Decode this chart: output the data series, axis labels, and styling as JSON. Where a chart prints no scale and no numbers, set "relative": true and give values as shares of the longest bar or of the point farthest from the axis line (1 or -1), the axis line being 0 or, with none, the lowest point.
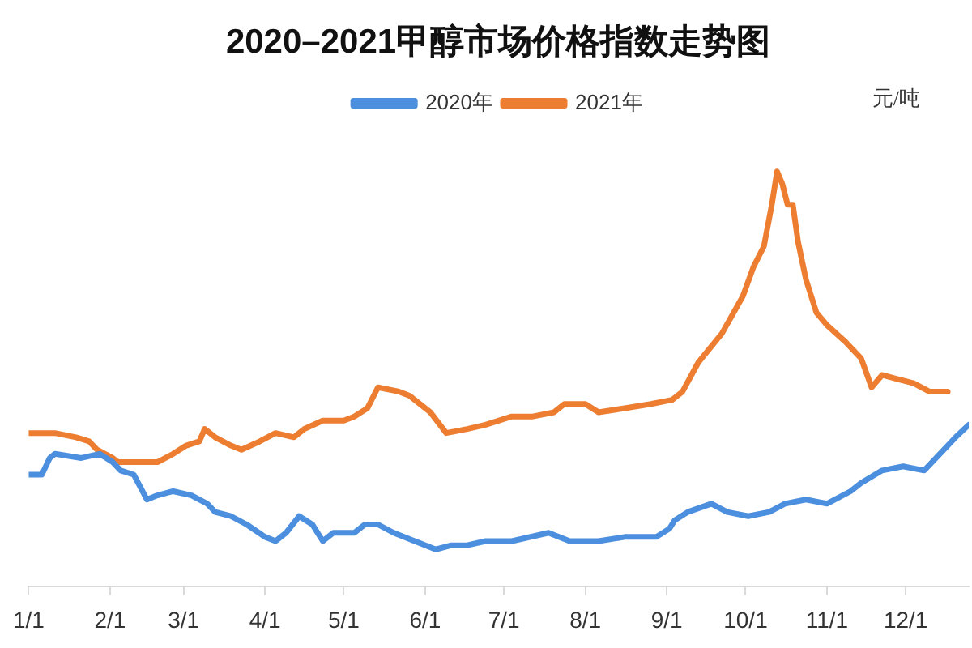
{
  "chart_data": {
    "type": "line",
    "title": "2020–2021甲醇市场价格指数走势图",
    "ylabel": "元/吨",
    "relative": true,
    "legend": "top",
    "marker": "none",
    "xlim": [
      "--01-01",
      "--12-25"
    ],
    "xticks": [
      {
        "value": "--01-01",
        "label": "1/1"
      },
      {
        "value": "--02-01",
        "label": "2/1"
      },
      {
        "value": "--03-01",
        "label": "3/1"
      },
      {
        "value": "--04-01",
        "label": "4/1"
      },
      {
        "value": "--05-01",
        "label": "5/1"
      },
      {
        "value": "--06-01",
        "label": "6/1"
      },
      {
        "value": "--07-01",
        "label": "7/1"
      },
      {
        "value": "--08-01",
        "label": "8/1"
      },
      {
        "value": "--09-01",
        "label": "9/1"
      },
      {
        "value": "--10-01",
        "label": "10/1"
      },
      {
        "value": "--11-01",
        "label": "11/1"
      },
      {
        "value": "--12-01",
        "label": "12/1"
      }
    ],
    "series": [
      {
        "name": "2020年",
        "color": "#4b8fde",
        "x": [
          "--01-01",
          "--01-06",
          "--01-09",
          "--01-11",
          "--01-21",
          "--01-28",
          "--02-02",
          "--02-05",
          "--02-10",
          "--02-15",
          "--02-19",
          "--02-25",
          "--03-04",
          "--03-10",
          "--03-13",
          "--03-19",
          "--03-25",
          "--04-01",
          "--04-05",
          "--04-09",
          "--04-14",
          "--04-19",
          "--04-23",
          "--04-27",
          "--05-05",
          "--05-09",
          "--05-14",
          "--05-20",
          "--05-28",
          "--06-05",
          "--06-11",
          "--06-17",
          "--06-24",
          "--07-04",
          "--07-18",
          "--07-26",
          "--08-06",
          "--08-16",
          "--08-28",
          "--09-02",
          "--09-04",
          "--09-09",
          "--09-18",
          "--09-24",
          "--10-02",
          "--10-10",
          "--10-16",
          "--10-24",
          "--11-01",
          "--11-10",
          "--11-14",
          "--11-22",
          "--11-30",
          "--12-08",
          "--12-14",
          "--12-20",
          "--12-25"
        ],
        "values": [
          0.27,
          0.27,
          0.31,
          0.32,
          0.31,
          0.32,
          0.3,
          0.28,
          0.27,
          0.21,
          0.22,
          0.23,
          0.22,
          0.2,
          0.18,
          0.17,
          0.15,
          0.12,
          0.11,
          0.13,
          0.17,
          0.15,
          0.11,
          0.13,
          0.13,
          0.15,
          0.15,
          0.13,
          0.11,
          0.09,
          0.1,
          0.1,
          0.11,
          0.11,
          0.13,
          0.11,
          0.11,
          0.12,
          0.12,
          0.14,
          0.16,
          0.18,
          0.2,
          0.18,
          0.17,
          0.18,
          0.2,
          0.21,
          0.2,
          0.23,
          0.25,
          0.28,
          0.29,
          0.28,
          0.32,
          0.36,
          0.39
        ]
      },
      {
        "name": "2021年",
        "color": "#ed7d31",
        "x": [
          "--01-01",
          "--01-11",
          "--01-19",
          "--01-24",
          "--01-27",
          "--02-02",
          "--02-04",
          "--02-13",
          "--02-19",
          "--02-25",
          "--03-02",
          "--03-07",
          "--03-09",
          "--03-13",
          "--03-19",
          "--03-23",
          "--03-30",
          "--04-05",
          "--04-12",
          "--04-16",
          "--04-23",
          "--05-01",
          "--05-05",
          "--05-10",
          "--05-14",
          "--05-22",
          "--05-26",
          "--06-03",
          "--06-09",
          "--06-17",
          "--06-24",
          "--07-04",
          "--07-12",
          "--07-20",
          "--07-24",
          "--08-01",
          "--08-06",
          "--08-16",
          "--08-26",
          "--09-03",
          "--09-07",
          "--09-13",
          "--09-22",
          "--09-30",
          "--10-04",
          "--10-08",
          "--10-11",
          "--10-13",
          "--10-15",
          "--10-17",
          "--10-19",
          "--10-21",
          "--10-24",
          "--10-28",
          "--11-01",
          "--11-08",
          "--11-14",
          "--11-18",
          "--11-22",
          "--11-28",
          "--12-04",
          "--12-10",
          "--12-17"
        ],
        "values": [
          0.37,
          0.37,
          0.36,
          0.35,
          0.33,
          0.31,
          0.3,
          0.3,
          0.3,
          0.32,
          0.34,
          0.35,
          0.38,
          0.36,
          0.34,
          0.33,
          0.35,
          0.37,
          0.36,
          0.38,
          0.4,
          0.4,
          0.41,
          0.43,
          0.48,
          0.47,
          0.46,
          0.42,
          0.37,
          0.38,
          0.39,
          0.41,
          0.41,
          0.42,
          0.44,
          0.44,
          0.42,
          0.43,
          0.44,
          0.45,
          0.47,
          0.54,
          0.61,
          0.7,
          0.77,
          0.82,
          0.92,
          1,
          0.97,
          0.92,
          0.92,
          0.83,
          0.74,
          0.66,
          0.63,
          0.59,
          0.55,
          0.48,
          0.51,
          0.5,
          0.49,
          0.47,
          0.47
        ]
      }
    ]
  }
}
